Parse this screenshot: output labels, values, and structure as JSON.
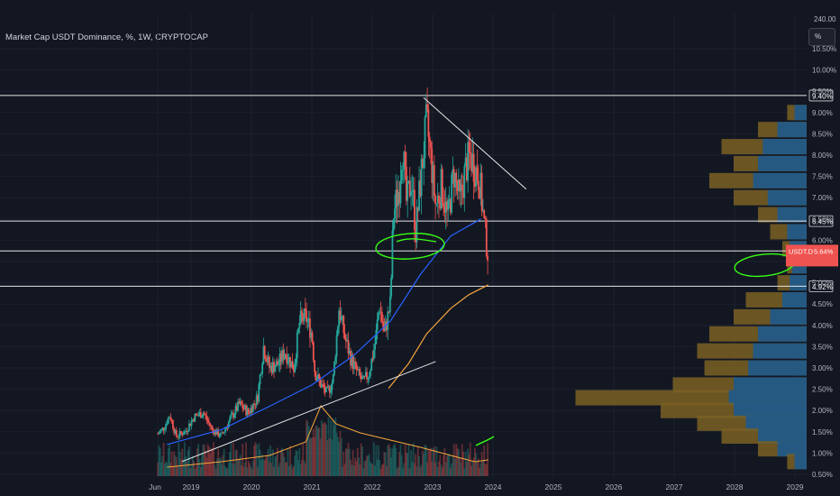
{
  "header": {
    "title": "Market Cap USDT Dominance, %, 1W, CRYPTOCAP",
    "unit_button": "%"
  },
  "colors": {
    "background": "#131722",
    "up": "#26a69a",
    "down": "#ef5350",
    "ma_blue": "#2962ff",
    "ma_orange": "#f7a53b",
    "volume_profile_blue": "#1e5a8c",
    "volume_profile_gold": "#7a6023",
    "annotation_green": "#39ff14",
    "line_white": "#e6e6e6"
  },
  "chart_data": {
    "type": "candlestick",
    "title": "Market Cap USDT Dominance, %, 1W, CRYPTOCAP",
    "x_tick_labels": [
      "Jun",
      "2019",
      "2020",
      "2021",
      "2022",
      "2023",
      "2024",
      "2025",
      "2026",
      "2027",
      "2028",
      "2029"
    ],
    "x_tick_years": [
      2018.45,
      2019.0,
      2020.0,
      2021.0,
      2022.0,
      2023.0,
      2024.0,
      2025.0,
      2026.0,
      2027.0,
      2028.0,
      2029.0
    ],
    "y_tick_labels": [
      "0.50%",
      "1.00%",
      "1.50%",
      "2.00%",
      "2.50%",
      "3.00%",
      "3.50%",
      "4.00%",
      "4.50%",
      "5.00%",
      "5.50%",
      "6.00%",
      "6.50%",
      "7.00%",
      "7.50%",
      "8.00%",
      "8.50%",
      "9.00%",
      "9.50%",
      "10.00%",
      "10.50%"
    ],
    "y_tick_values": [
      0.5,
      1.0,
      1.5,
      2.0,
      2.5,
      3.0,
      3.5,
      4.0,
      4.5,
      5.0,
      5.5,
      6.0,
      6.5,
      7.0,
      7.5,
      8.0,
      8.5,
      9.0,
      9.5,
      10.0,
      10.5
    ],
    "y_top_label": "240.00",
    "ylim": [
      0.5,
      11.0
    ],
    "xlim": [
      2018.45,
      2029.2
    ],
    "price_path": [
      [
        2018.45,
        1.45
      ],
      [
        2018.55,
        1.6
      ],
      [
        2018.65,
        1.9
      ],
      [
        2018.75,
        1.4
      ],
      [
        2018.9,
        1.5
      ],
      [
        2019.05,
        1.85
      ],
      [
        2019.2,
        1.95
      ],
      [
        2019.35,
        1.55
      ],
      [
        2019.5,
        1.4
      ],
      [
        2019.65,
        1.8
      ],
      [
        2019.8,
        2.15
      ],
      [
        2019.95,
        1.95
      ],
      [
        2020.1,
        2.3
      ],
      [
        2020.2,
        3.5
      ],
      [
        2020.3,
        3.0
      ],
      [
        2020.45,
        3.1
      ],
      [
        2020.55,
        3.4
      ],
      [
        2020.7,
        3.0
      ],
      [
        2020.8,
        4.1
      ],
      [
        2020.9,
        4.2
      ],
      [
        2021.0,
        3.8
      ],
      [
        2021.05,
        2.9
      ],
      [
        2021.15,
        2.6
      ],
      [
        2021.25,
        2.4
      ],
      [
        2021.35,
        2.7
      ],
      [
        2021.45,
        4.4
      ],
      [
        2021.55,
        3.7
      ],
      [
        2021.65,
        3.2
      ],
      [
        2021.75,
        2.9
      ],
      [
        2021.85,
        2.65
      ],
      [
        2021.95,
        2.9
      ],
      [
        2022.05,
        3.6
      ],
      [
        2022.12,
        4.5
      ],
      [
        2022.2,
        3.8
      ],
      [
        2022.3,
        4.5
      ],
      [
        2022.35,
        6.6
      ],
      [
        2022.45,
        7.3
      ],
      [
        2022.5,
        8.3
      ],
      [
        2022.57,
        6.8
      ],
      [
        2022.65,
        7.5
      ],
      [
        2022.72,
        6.2
      ],
      [
        2022.8,
        7.4
      ],
      [
        2022.9,
        8.8
      ],
      [
        2022.98,
        7.8
      ],
      [
        2023.05,
        6.8
      ],
      [
        2023.15,
        7.3
      ],
      [
        2023.25,
        6.5
      ],
      [
        2023.35,
        7.6
      ],
      [
        2023.45,
        6.9
      ],
      [
        2023.55,
        7.7
      ],
      [
        2023.62,
        8.0
      ],
      [
        2023.7,
        7.7
      ],
      [
        2023.78,
        7.4
      ],
      [
        2023.85,
        6.4
      ],
      [
        2023.92,
        5.64
      ]
    ],
    "last_price_label": "5.64%",
    "ticker_label": "USDT.D",
    "horizontal_levels": [
      {
        "value": 9.4,
        "label": "9.40%"
      },
      {
        "value": 6.45,
        "label": "6.45%"
      },
      {
        "value": 5.75,
        "label": "5.75%"
      },
      {
        "value": 4.92,
        "label": "4.92%"
      }
    ],
    "trendlines": [
      {
        "from": [
          2018.85,
          0.8
        ],
        "to": [
          2023.05,
          3.15
        ]
      },
      {
        "from": [
          2022.85,
          9.35
        ],
        "to": [
          2024.55,
          7.2
        ]
      }
    ],
    "moving_averages": [
      {
        "color": "blue",
        "points": [
          [
            2018.6,
            1.2
          ],
          [
            2019.5,
            1.55
          ],
          [
            2020.3,
            2.1
          ],
          [
            2021.0,
            2.6
          ],
          [
            2021.7,
            3.3
          ],
          [
            2022.3,
            4.1
          ],
          [
            2022.8,
            5.2
          ],
          [
            2023.3,
            6.1
          ],
          [
            2023.8,
            6.5
          ]
        ]
      },
      {
        "color": "orange",
        "points": [
          [
            2022.27,
            2.52
          ],
          [
            2022.6,
            3.1
          ],
          [
            2022.9,
            3.8
          ],
          [
            2023.3,
            4.4
          ],
          [
            2023.6,
            4.72
          ],
          [
            2023.92,
            4.95
          ]
        ]
      }
    ],
    "volume_profile_rows": [
      {
        "price": 9.0,
        "blue": 0.05,
        "gold": 0.08
      },
      {
        "price": 8.6,
        "blue": 0.12,
        "gold": 0.2
      },
      {
        "price": 8.2,
        "blue": 0.18,
        "gold": 0.35
      },
      {
        "price": 7.8,
        "blue": 0.2,
        "gold": 0.3
      },
      {
        "price": 7.4,
        "blue": 0.22,
        "gold": 0.4
      },
      {
        "price": 7.0,
        "blue": 0.16,
        "gold": 0.3
      },
      {
        "price": 6.6,
        "blue": 0.12,
        "gold": 0.2
      },
      {
        "price": 6.2,
        "blue": 0.08,
        "gold": 0.15
      },
      {
        "price": 5.8,
        "blue": 0.07,
        "gold": 0.1
      },
      {
        "price": 5.4,
        "blue": 0.06,
        "gold": 0.08
      },
      {
        "price": 5.0,
        "blue": 0.07,
        "gold": 0.12
      },
      {
        "price": 4.6,
        "blue": 0.1,
        "gold": 0.25
      },
      {
        "price": 4.2,
        "blue": 0.15,
        "gold": 0.3
      },
      {
        "price": 3.8,
        "blue": 0.2,
        "gold": 0.4
      },
      {
        "price": 3.4,
        "blue": 0.22,
        "gold": 0.45
      },
      {
        "price": 3.0,
        "blue": 0.24,
        "gold": 0.42
      },
      {
        "price": 2.6,
        "blue": 0.3,
        "gold": 0.55
      },
      {
        "price": 2.3,
        "blue": 0.32,
        "gold": 0.95
      },
      {
        "price": 2.0,
        "blue": 0.3,
        "gold": 0.6
      },
      {
        "price": 1.7,
        "blue": 0.25,
        "gold": 0.45
      },
      {
        "price": 1.4,
        "blue": 0.2,
        "gold": 0.35
      },
      {
        "price": 1.1,
        "blue": 0.12,
        "gold": 0.2
      },
      {
        "price": 0.8,
        "blue": 0.05,
        "gold": 0.08
      }
    ],
    "legend": "none",
    "grid": true
  }
}
